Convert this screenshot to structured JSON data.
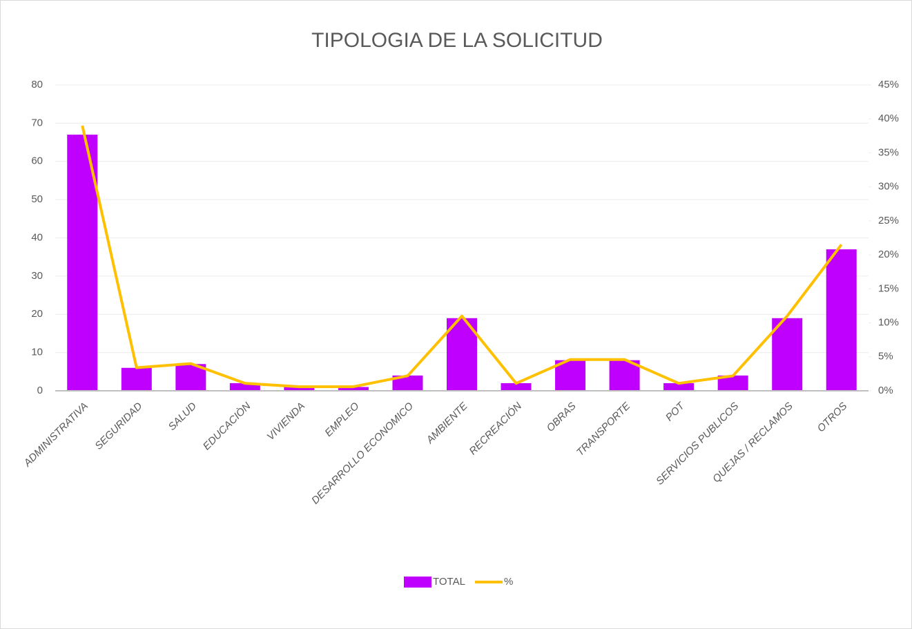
{
  "chart_data": {
    "type": "bar_line",
    "title": "TIPOLOGIA DE LA SOLICITUD",
    "categories": [
      "ADMINISTRATIVA",
      "SEGURIDAD",
      "SALUD",
      "EDUCACIÒN",
      "VIVIENDA",
      "EMPLEO",
      "DESARROLLO ECONOMICO",
      "AMBIENTE",
      "RECREACIÓN",
      "OBRAS",
      "TRANSPORTE",
      "POT",
      "SERVICIOS PUBLICOS",
      "QUEJAS / RECLAMOS",
      "OTROS"
    ],
    "series": [
      {
        "name": "TOTAL",
        "type": "bar",
        "color": "#c000ff",
        "values": [
          67,
          6,
          7,
          2,
          1,
          1,
          4,
          19,
          2,
          8,
          8,
          2,
          4,
          19,
          37
        ]
      },
      {
        "name": "%",
        "type": "line",
        "axis": "y2",
        "color": "#ffc000",
        "values": [
          39,
          3.4,
          4,
          1.1,
          0.6,
          0.6,
          2.2,
          11,
          1.1,
          4.6,
          4.6,
          1.1,
          2.2,
          11,
          21.5
        ]
      }
    ],
    "ylim": [
      0,
      80
    ],
    "yticks": [
      0,
      10,
      20,
      30,
      40,
      50,
      60,
      70,
      80
    ],
    "y2lim": [
      0,
      45
    ],
    "y2ticks": [
      {
        "value": 0,
        "label": "0%"
      },
      {
        "value": 5,
        "label": "5%"
      },
      {
        "value": 10,
        "label": "10%"
      },
      {
        "value": 15,
        "label": "15%"
      },
      {
        "value": 20,
        "label": "20%"
      },
      {
        "value": 25,
        "label": "25%"
      },
      {
        "value": 30,
        "label": "30%"
      },
      {
        "value": 35,
        "label": "35%"
      },
      {
        "value": 40,
        "label": "40%"
      },
      {
        "value": 45,
        "label": "45%"
      }
    ],
    "grid": true,
    "legend": "bottom"
  }
}
